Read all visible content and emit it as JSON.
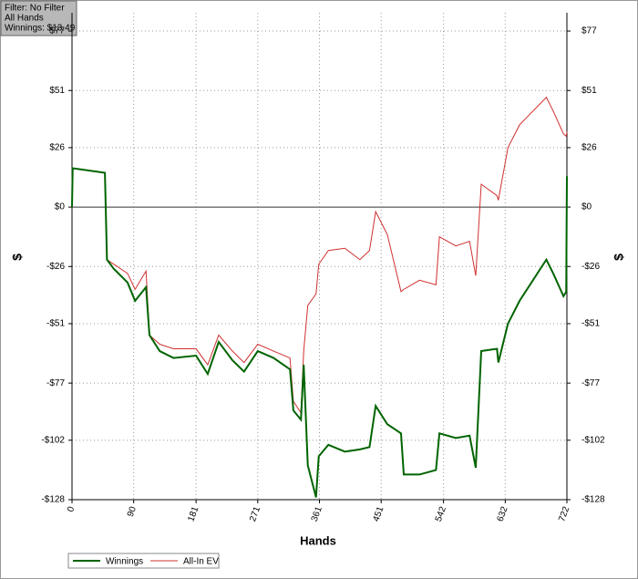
{
  "chart_data": {
    "type": "line",
    "info": [
      "Filter: No Filter",
      "All Hands",
      "Winnings: $13.49"
    ],
    "xlabel": "Hands",
    "ylabel": "$",
    "y2label": "$",
    "x": [
      0,
      1,
      48,
      51,
      61,
      81,
      92,
      108,
      113,
      128,
      148,
      181,
      198,
      214,
      234,
      251,
      271,
      294,
      318,
      323,
      334,
      338,
      344,
      356,
      360,
      374,
      398,
      420,
      434,
      443,
      460,
      480,
      484,
      507,
      531,
      536,
      560,
      580,
      589,
      597,
      620,
      622,
      636,
      653,
      666,
      692,
      702,
      717,
      721,
      722
    ],
    "series": [
      {
        "name": "Winnings",
        "color": "#006400",
        "values": [
          0,
          17,
          15,
          -23,
          -27,
          -33,
          -41,
          -35,
          -56,
          -63,
          -66,
          -65,
          -73,
          -59,
          -67,
          -72,
          -63,
          -66,
          -71,
          -89,
          -93,
          -69,
          -113,
          -127,
          -109,
          -104,
          -107,
          -106,
          -105,
          -87,
          -95,
          -99,
          -117,
          -117,
          -115,
          -99,
          -101,
          -100,
          -114,
          -63,
          -62,
          -68,
          -51,
          -41,
          -35,
          -23,
          -29,
          -39,
          -37,
          13.49
        ]
      },
      {
        "name": "All-In EV",
        "color": "#d03030",
        "values": [
          0,
          17,
          15,
          -23,
          -25,
          -29,
          -36,
          -28,
          -56,
          -60,
          -62,
          -62,
          -69,
          -56,
          -63,
          -68,
          -60,
          -63,
          -66,
          -85,
          -90,
          -63,
          -43,
          -38,
          -25,
          -19,
          -18,
          -23,
          -19,
          -2,
          -12,
          -37,
          -36,
          -32,
          -34,
          -13,
          -17,
          -15,
          -30,
          10,
          5,
          3,
          26,
          36,
          40,
          48,
          42,
          32,
          31,
          33
        ]
      }
    ],
    "xlim": [
      0,
      722
    ],
    "xticks": [
      0,
      90,
      181,
      271,
      361,
      451,
      542,
      632,
      722
    ],
    "ylim": [
      -128,
      85
    ],
    "yticks": [
      {
        "value": 77,
        "label": "$77"
      },
      {
        "value": 51,
        "label": "$51"
      },
      {
        "value": 26,
        "label": "$26"
      },
      {
        "value": 0,
        "label": "$0"
      },
      {
        "value": -26,
        "label": "-$26"
      },
      {
        "value": -51,
        "label": "-$51"
      },
      {
        "value": -77,
        "label": "-$77"
      },
      {
        "value": -102,
        "label": "-$102"
      },
      {
        "value": -128,
        "label": "-$128"
      }
    ],
    "y2lim": [
      -128,
      85
    ],
    "y2ticks": [
      {
        "value": 77,
        "label": "$77"
      },
      {
        "value": 51,
        "label": "$51"
      },
      {
        "value": 26,
        "label": "$26"
      },
      {
        "value": 0,
        "label": "$0"
      },
      {
        "value": -26,
        "label": "-$26"
      },
      {
        "value": -51,
        "label": "-$51"
      },
      {
        "value": -77,
        "label": "-$77"
      },
      {
        "value": -102,
        "label": "-$102"
      },
      {
        "value": -128,
        "label": "-$128"
      }
    ],
    "grid": true
  }
}
